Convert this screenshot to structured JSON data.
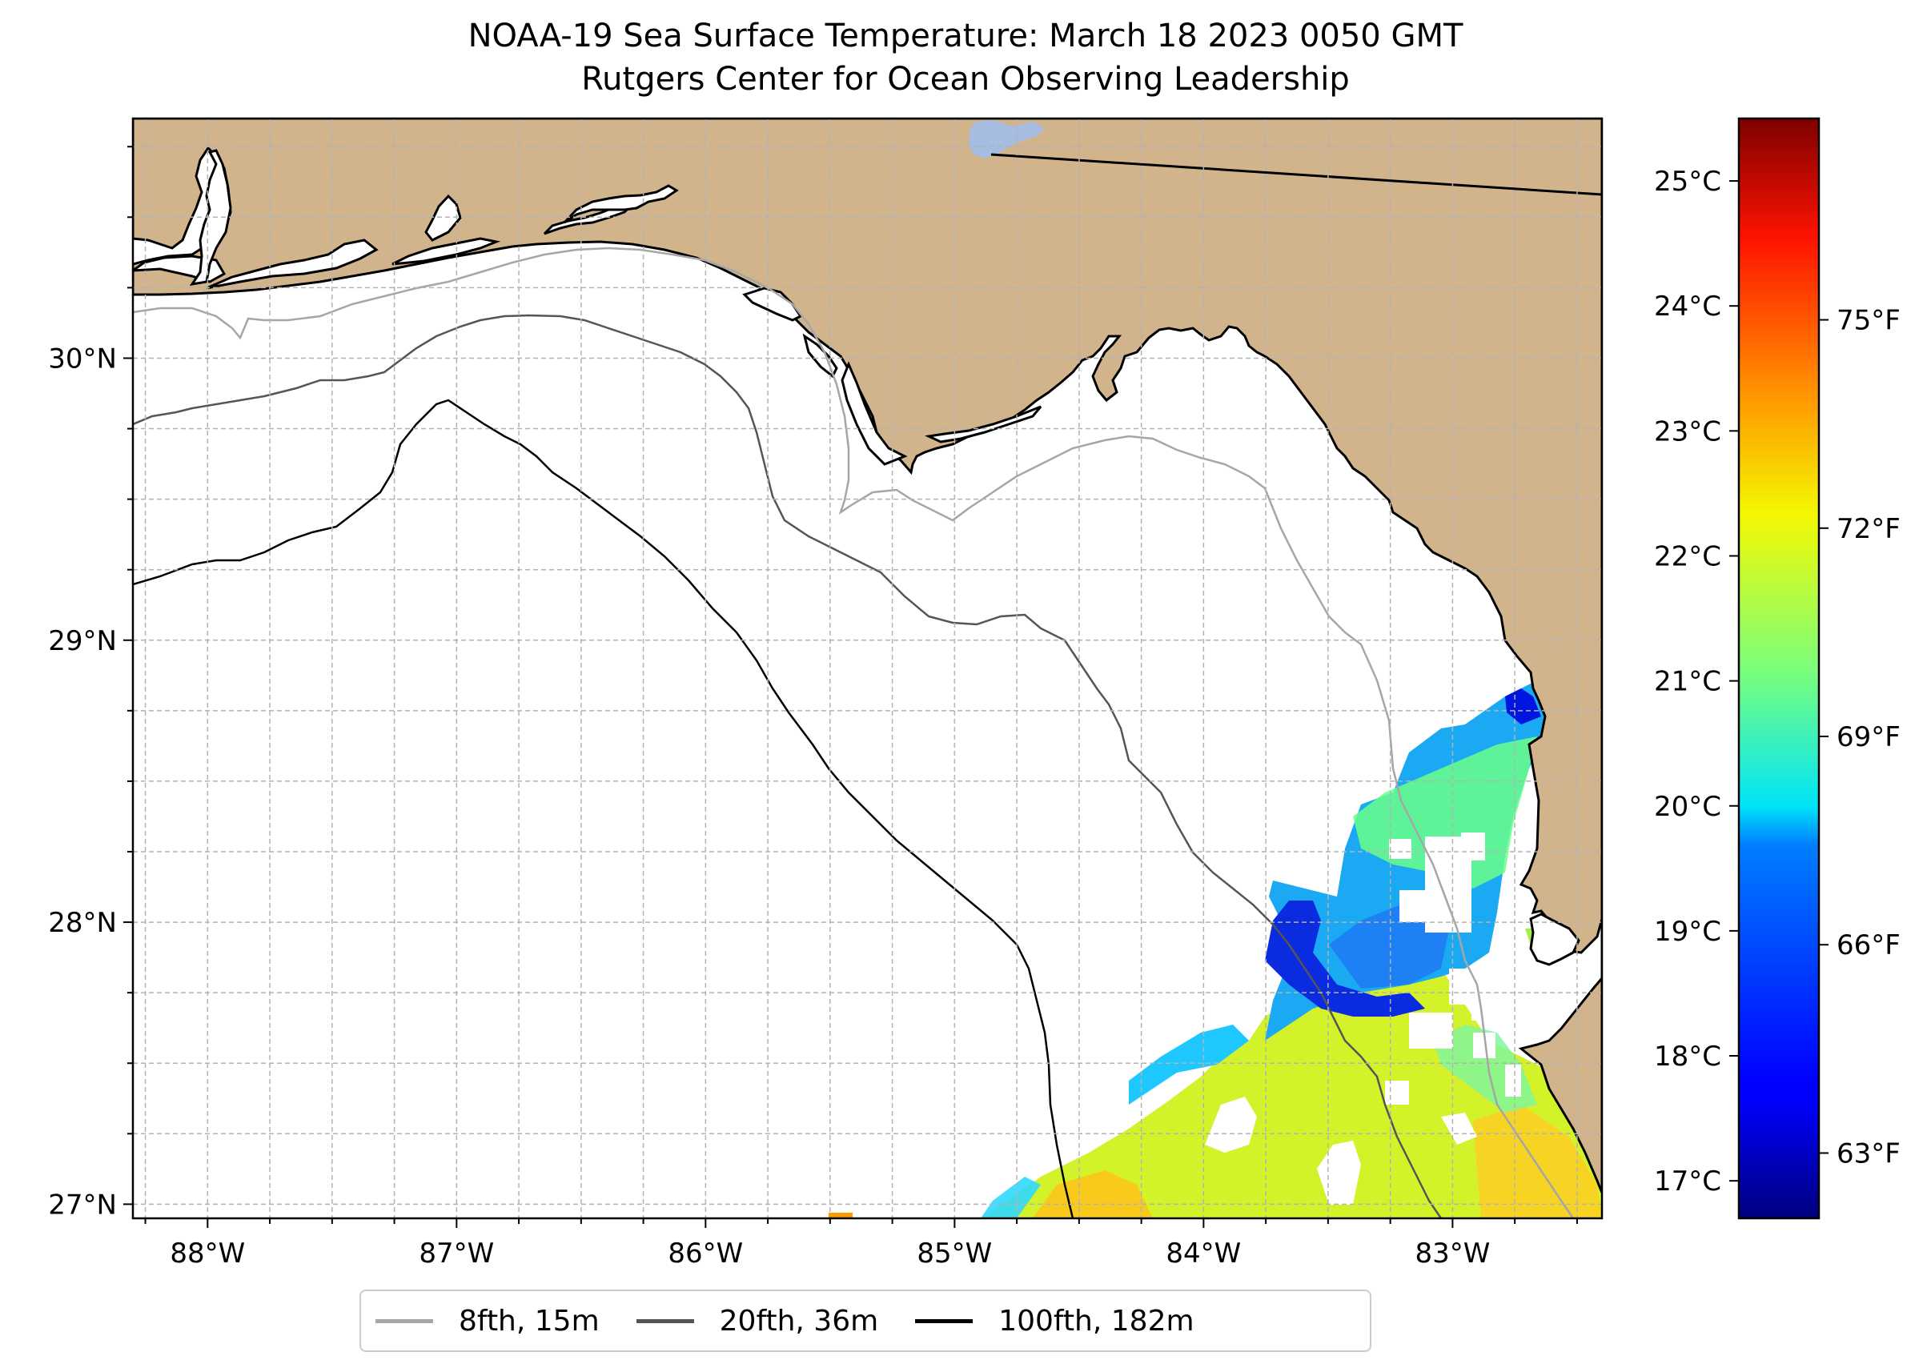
{
  "title_line1": "NOAA-19 Sea Surface Temperature: March 18 2023 0050 GMT",
  "title_line2": "Rutgers Center for Ocean Observing Leadership",
  "map": {
    "lon_range": [
      -88.3,
      -82.4
    ],
    "lat_range": [
      26.95,
      30.85
    ],
    "lon_ticks": [
      {
        "value": -88,
        "label": "88°W"
      },
      {
        "value": -87,
        "label": "87°W"
      },
      {
        "value": -86,
        "label": "86°W"
      },
      {
        "value": -85,
        "label": "85°W"
      },
      {
        "value": -84,
        "label": "84°W"
      },
      {
        "value": -83,
        "label": "83°W"
      }
    ],
    "lat_ticks": [
      {
        "value": 27,
        "label": "27°N"
      },
      {
        "value": 28,
        "label": "28°N"
      },
      {
        "value": 29,
        "label": "29°N"
      },
      {
        "value": 30,
        "label": "30°N"
      }
    ],
    "grid": true,
    "colors": {
      "land": "#d2b48c",
      "ocean_no_data": "#ffffff",
      "lake": "#a4bde0"
    }
  },
  "legend": {
    "placement": "bottom-center",
    "items": [
      {
        "label": "8fth, 15m",
        "color": "#a6a6a6"
      },
      {
        "label": "20fth, 36m",
        "color": "#555555"
      },
      {
        "label": "100fth, 182m",
        "color": "#000000"
      }
    ]
  },
  "colorbar": {
    "colormap": "jet",
    "range_c": [
      16.7,
      25.5
    ],
    "celsius_ticks": [
      {
        "value": 17,
        "label": "17°C"
      },
      {
        "value": 18,
        "label": "18°C"
      },
      {
        "value": 19,
        "label": "19°C"
      },
      {
        "value": 20,
        "label": "20°C"
      },
      {
        "value": 21,
        "label": "21°C"
      },
      {
        "value": 22,
        "label": "22°C"
      },
      {
        "value": 23,
        "label": "23°C"
      },
      {
        "value": 24,
        "label": "24°C"
      },
      {
        "value": 25,
        "label": "25°C"
      }
    ],
    "fahrenheit_ticks": [
      {
        "value": 63,
        "label": "63°F"
      },
      {
        "value": 66,
        "label": "66°F"
      },
      {
        "value": 69,
        "label": "69°F"
      },
      {
        "value": 72,
        "label": "72°F"
      },
      {
        "value": 75,
        "label": "75°F"
      }
    ]
  }
}
